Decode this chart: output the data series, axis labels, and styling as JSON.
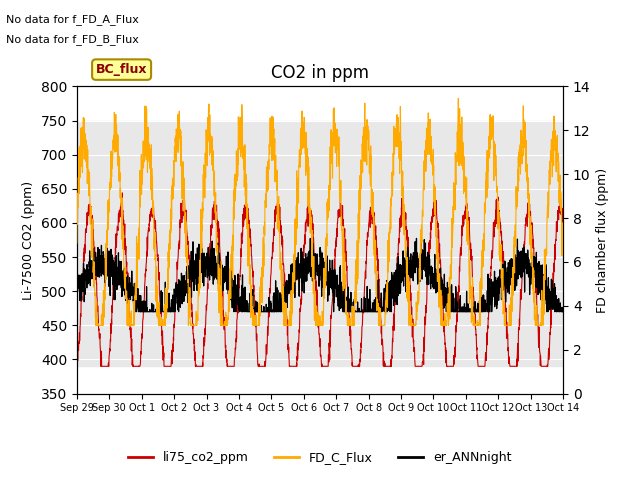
{
  "title": "CO2 in ppm",
  "ylabel_left": "Li-7500 CO2 (ppm)",
  "ylabel_right": "FD chamber flux (ppm)",
  "ylim_left": [
    350,
    800
  ],
  "ylim_right": [
    0,
    14
  ],
  "yticks_left": [
    350,
    400,
    450,
    500,
    550,
    600,
    650,
    700,
    750,
    800
  ],
  "yticks_right": [
    0,
    2,
    4,
    6,
    8,
    10,
    12,
    14
  ],
  "xticklabels": [
    "Sep 29",
    "Sep 30",
    "Oct 1",
    "Oct 2",
    "Oct 3",
    "Oct 4",
    "Oct 5",
    "Oct 6",
    "Oct 7",
    "Oct 8",
    "Oct 9",
    "Oct 10",
    "Oct 11",
    "Oct 12",
    "Oct 13",
    "Oct 14"
  ],
  "annotation1": "No data for f_FD_A_Flux",
  "annotation2": "No data for f_FD_B_Flux",
  "bc_flux_label": "BC_flux",
  "legend_entries": [
    "li75_co2_ppm",
    "FD_C_Flux",
    "er_ANNnight"
  ],
  "legend_colors": [
    "#cc0000",
    "#ffaa00",
    "#000000"
  ],
  "line_colors": {
    "li75": "#cc0000",
    "fd_c": "#ffaa00",
    "ann": "#000000"
  },
  "background_color": "#ffffff",
  "band_color": "#e8e8e8",
  "band_ylim": [
    390,
    750
  ]
}
